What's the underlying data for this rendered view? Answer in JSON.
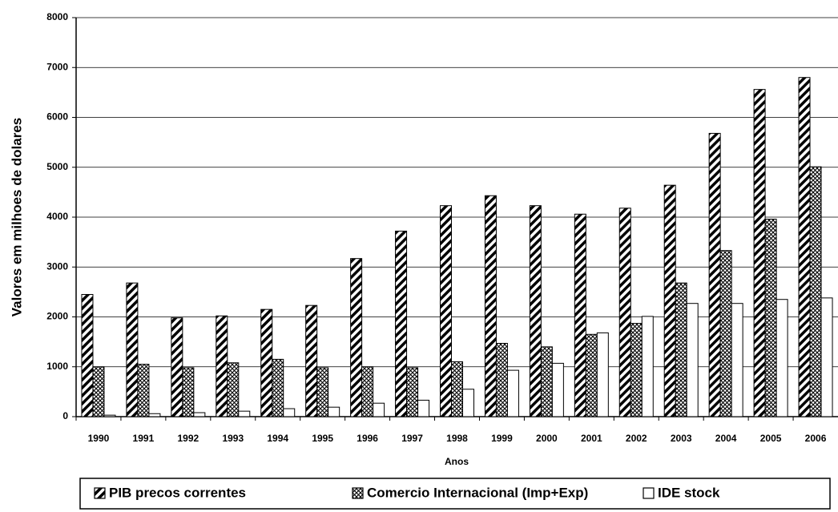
{
  "chart_data": {
    "type": "bar",
    "x_label": "Anos",
    "y_label": "Valores em milhoes de dolares",
    "categories": [
      "1990",
      "1991",
      "1992",
      "1993",
      "1994",
      "1995",
      "1996",
      "1997",
      "1998",
      "1999",
      "2000",
      "2001",
      "2002",
      "2003",
      "2004",
      "2005",
      "2006"
    ],
    "series": [
      {
        "name": "PIB precos correntes",
        "color": "#000000",
        "pattern": "diagonal",
        "values": [
          2450,
          2680,
          1980,
          2020,
          2150,
          2230,
          3170,
          3720,
          4230,
          4430,
          4230,
          4060,
          4180,
          4640,
          5680,
          6560,
          6800
        ]
      },
      {
        "name": "Comercio Internacional (Imp+Exp)",
        "color": "#000000",
        "pattern": "crosshatch",
        "values": [
          1000,
          1050,
          980,
          1080,
          1150,
          980,
          1000,
          980,
          1100,
          1470,
          1400,
          1650,
          1870,
          2680,
          3330,
          3960,
          5010
        ]
      },
      {
        "name": "IDE stock",
        "color": "#000000",
        "pattern": "none",
        "values": [
          30,
          60,
          80,
          110,
          160,
          190,
          270,
          330,
          550,
          930,
          1070,
          1680,
          2010,
          2270,
          2270,
          2350,
          2380
        ]
      }
    ],
    "ylim": [
      0,
      8000
    ],
    "yticks": [
      0,
      1000,
      2000,
      3000,
      4000,
      5000,
      6000,
      7000,
      8000
    ],
    "grid": true,
    "legend": "bottom"
  }
}
